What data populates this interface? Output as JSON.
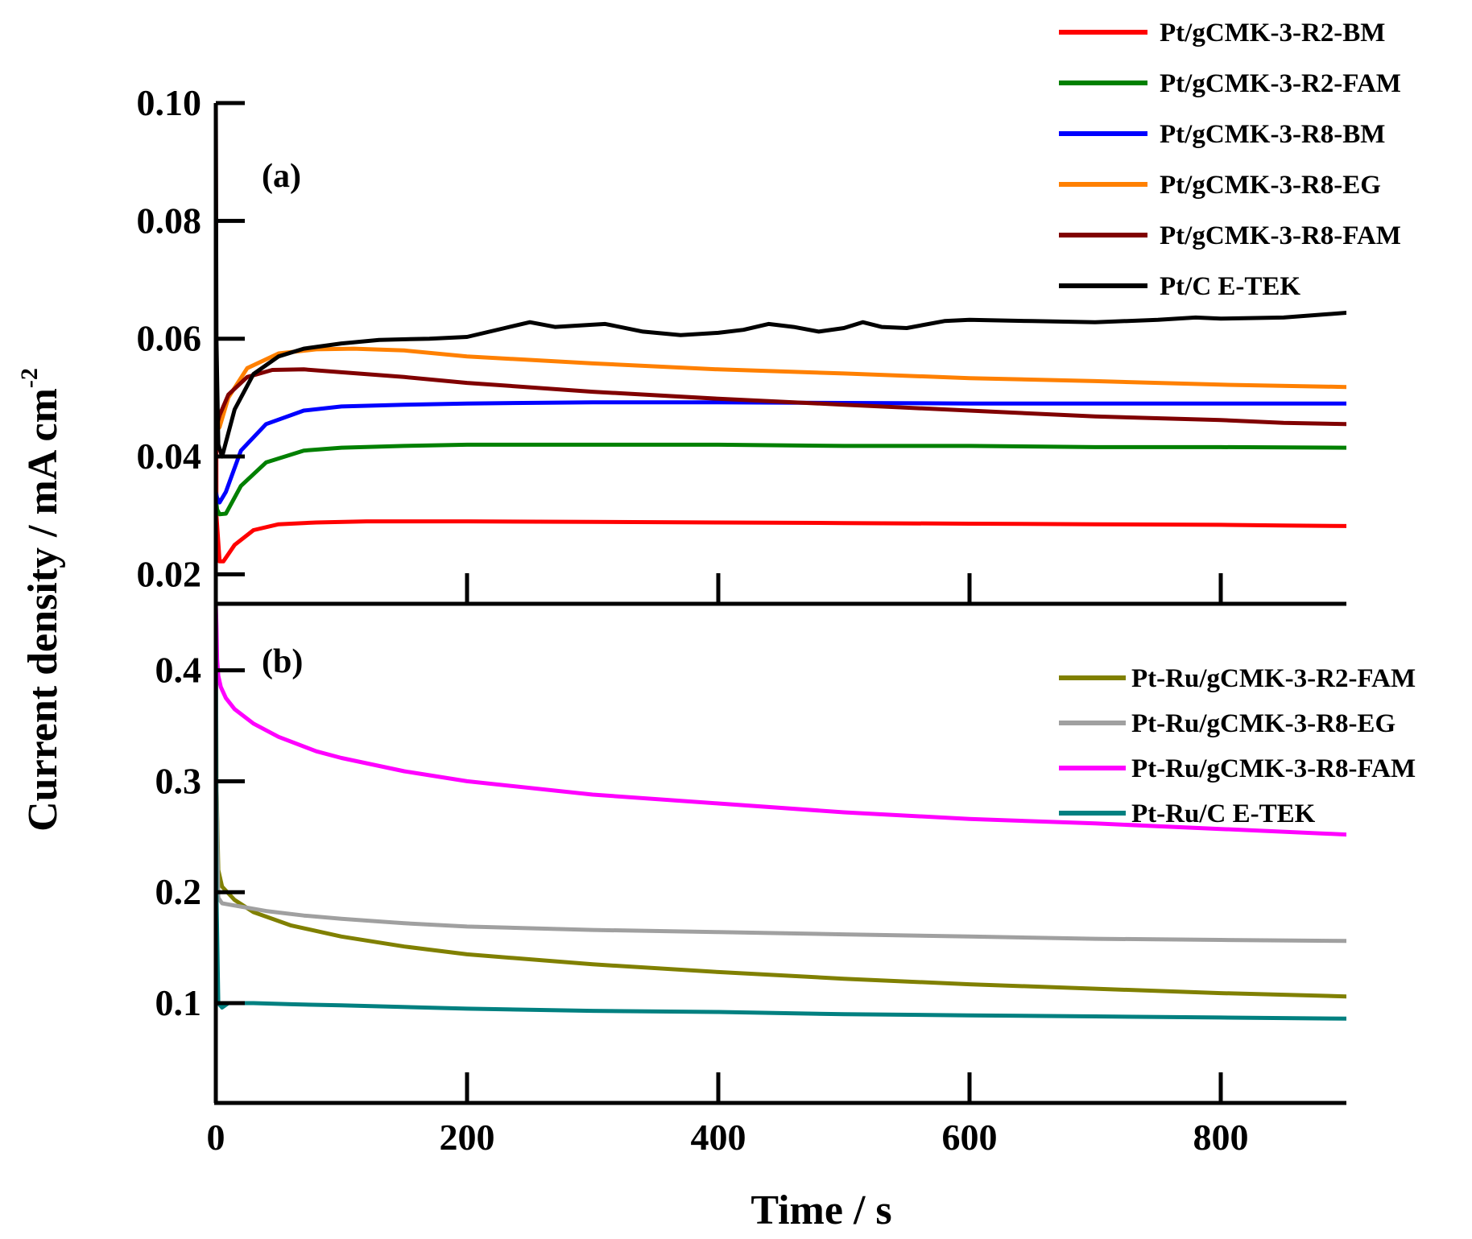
{
  "chart_data": {
    "type": "line",
    "xlabel": "Time / s",
    "ylabel": "Current density / mA cm",
    "ylabel_superscript": "-2",
    "xlim": [
      0,
      900
    ],
    "xticks": [
      0,
      200,
      400,
      600,
      800
    ],
    "panels": [
      {
        "label": "(a)",
        "ylim": [
          0.015,
          0.1
        ],
        "yticks": [
          0.02,
          0.04,
          0.06,
          0.08,
          0.1
        ],
        "yticklabels": [
          "0.02",
          "0.04",
          "0.06",
          "0.08",
          "0.10"
        ],
        "series": [
          {
            "name": "Pt/gCMK-3-R2-BM",
            "color": "#ff0000",
            "x": [
              0,
              0.5,
              3,
              6,
              15,
              30,
              50,
              80,
              120,
              200,
              300,
              400,
              500,
              600,
              700,
              800,
              850,
              900
            ],
            "y": [
              0.1,
              0.03,
              0.0222,
              0.0222,
              0.025,
              0.0275,
              0.0285,
              0.0288,
              0.029,
              0.029,
              0.0289,
              0.0288,
              0.0287,
              0.0286,
              0.0285,
              0.0284,
              0.0283,
              0.0282
            ]
          },
          {
            "name": "Pt/gCMK-3-R2-FAM",
            "color": "#008000",
            "x": [
              0,
              1,
              3,
              8,
              20,
              40,
              70,
              100,
              150,
              200,
              300,
              400,
              500,
              600,
              700,
              800,
              900
            ],
            "y": [
              0.033,
              0.031,
              0.0302,
              0.0303,
              0.035,
              0.039,
              0.041,
              0.0415,
              0.0418,
              0.042,
              0.042,
              0.042,
              0.0418,
              0.0418,
              0.0416,
              0.0416,
              0.0415
            ]
          },
          {
            "name": "Pt/gCMK-3-R8-BM",
            "color": "#0000ff",
            "x": [
              0,
              1,
              3,
              8,
              20,
              40,
              70,
              100,
              150,
              200,
              300,
              400,
              500,
              600,
              700,
              800,
              900
            ],
            "y": [
              0.034,
              0.033,
              0.0322,
              0.034,
              0.041,
              0.0455,
              0.0478,
              0.0485,
              0.0488,
              0.049,
              0.0492,
              0.0492,
              0.0491,
              0.049,
              0.049,
              0.049,
              0.049
            ]
          },
          {
            "name": "Pt/gCMK-3-R8-EG",
            "color": "#ff8000",
            "x": [
              0,
              1,
              3,
              10,
              25,
              50,
              80,
              110,
              150,
              200,
              300,
              400,
              500,
              600,
              700,
              800,
              900
            ],
            "y": [
              0.045,
              0.0445,
              0.045,
              0.05,
              0.055,
              0.0575,
              0.0582,
              0.0583,
              0.058,
              0.057,
              0.0558,
              0.0548,
              0.0541,
              0.0533,
              0.0528,
              0.0522,
              0.0518
            ]
          },
          {
            "name": "Pt/gCMK-3-R8-FAM",
            "color": "#800000",
            "x": [
              0,
              1,
              3,
              10,
              25,
              45,
              70,
              100,
              150,
              200,
              300,
              400,
              500,
              600,
              700,
              800,
              850,
              900
            ],
            "y": [
              0.046,
              0.0455,
              0.047,
              0.0505,
              0.0535,
              0.0547,
              0.0548,
              0.0543,
              0.0535,
              0.0525,
              0.051,
              0.0498,
              0.0488,
              0.0478,
              0.0468,
              0.0462,
              0.0457,
              0.0455
            ]
          },
          {
            "name": "Pt/C E-TEK",
            "color": "#000000",
            "x": [
              0,
              0.5,
              2,
              5,
              15,
              30,
              50,
              70,
              100,
              130,
              170,
              200,
              230,
              250,
              270,
              310,
              340,
              370,
              400,
              420,
              440,
              460,
              480,
              500,
              515,
              530,
              550,
              580,
              600,
              650,
              700,
              750,
              780,
              800,
              850,
              900
            ],
            "y": [
              0.1,
              0.06,
              0.042,
              0.04,
              0.048,
              0.054,
              0.057,
              0.0583,
              0.0592,
              0.0598,
              0.06,
              0.0603,
              0.0618,
              0.0628,
              0.062,
              0.0625,
              0.0612,
              0.0606,
              0.061,
              0.0615,
              0.0625,
              0.062,
              0.0612,
              0.0618,
              0.0628,
              0.062,
              0.0618,
              0.063,
              0.0632,
              0.063,
              0.0628,
              0.0632,
              0.0636,
              0.0634,
              0.0636,
              0.0644
            ]
          }
        ]
      },
      {
        "label": "(b)",
        "ylim": [
          0.01,
          0.46
        ],
        "yticks": [
          0.1,
          0.2,
          0.3,
          0.4
        ],
        "yticklabels": [
          "0.1",
          "0.2",
          "0.3",
          "0.4"
        ],
        "series": [
          {
            "name": "Pt-Ru/gCMK-3-R2-FAM",
            "color": "#808000",
            "x": [
              0,
              0.5,
              2,
              5,
              15,
              30,
              60,
              100,
              150,
              200,
              300,
              400,
              500,
              600,
              700,
              800,
              900
            ],
            "y": [
              0.46,
              0.3,
              0.22,
              0.205,
              0.193,
              0.182,
              0.17,
              0.16,
              0.151,
              0.144,
              0.135,
              0.128,
              0.122,
              0.117,
              0.113,
              0.109,
              0.106
            ]
          },
          {
            "name": "Pt-Ru/gCMK-3-R8-EG",
            "color": "#a0a0a0",
            "x": [
              0,
              0.5,
              2,
              5,
              10,
              20,
              40,
              70,
              100,
              150,
              200,
              300,
              400,
              500,
              600,
              700,
              800,
              900
            ],
            "y": [
              0.46,
              0.3,
              0.195,
              0.19,
              0.189,
              0.187,
              0.183,
              0.179,
              0.176,
              0.172,
              0.169,
              0.166,
              0.164,
              0.162,
              0.16,
              0.158,
              0.157,
              0.156
            ]
          },
          {
            "name": "Pt-Ru/gCMK-3-R8-FAM",
            "color": "#ff00ff",
            "x": [
              0,
              0.5,
              1,
              2,
              4,
              8,
              15,
              30,
              50,
              80,
              100,
              150,
              200,
              300,
              400,
              500,
              600,
              700,
              800,
              900
            ],
            "y": [
              0.46,
              0.44,
              0.41,
              0.395,
              0.385,
              0.375,
              0.365,
              0.352,
              0.34,
              0.327,
              0.321,
              0.309,
              0.3,
              0.288,
              0.28,
              0.272,
              0.266,
              0.262,
              0.257,
              0.252
            ]
          },
          {
            "name": "Pt-Ru/C E-TEK",
            "color": "#008080",
            "x": [
              0,
              0.5,
              2,
              5,
              10,
              30,
              60,
              100,
              200,
              300,
              400,
              500,
              600,
              700,
              800,
              900
            ],
            "y": [
              0.46,
              0.2,
              0.1,
              0.096,
              0.1,
              0.1,
              0.099,
              0.098,
              0.095,
              0.093,
              0.092,
              0.09,
              0.089,
              0.088,
              0.087,
              0.086
            ]
          }
        ]
      }
    ]
  }
}
